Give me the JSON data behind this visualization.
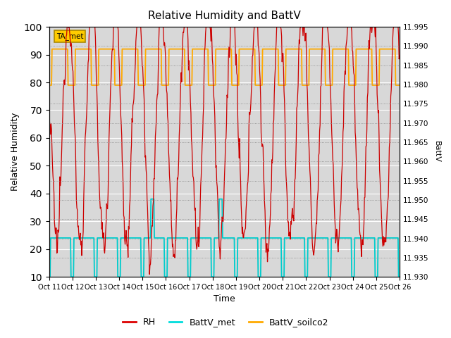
{
  "title": "Relative Humidity and BattV",
  "ylabel_left": "Relative Humidity",
  "ylabel_right": "BattV",
  "xlabel": "Time",
  "ylim_left": [
    10,
    100
  ],
  "ylim_right": [
    11.93,
    11.995
  ],
  "background_color": "#ffffff",
  "plot_bg_color": "#d8d8d8",
  "grid_color": "#ffffff",
  "annotation_text": "TA_met",
  "annotation_color": "#ffcc00",
  "x_tick_labels": [
    "Oct 11",
    "Oct 12",
    "Oct 13",
    "Oct 14",
    "Oct 15",
    "Oct 16",
    "Oct 17",
    "Oct 18",
    "Oct 19",
    "Oct 20",
    "Oct 21",
    "Oct 22",
    "Oct 23",
    "Oct 24",
    "Oct 25",
    "Oct 26"
  ],
  "legend_labels": [
    "RH",
    "BattV_met",
    "BattV_soilco2"
  ],
  "legend_colors": [
    "#dd0000",
    "#00dddd",
    "#ffaa00"
  ],
  "rh_color": "#cc0000",
  "battv_met_color": "#00cccc",
  "battv_soilco2_color": "#ffaa00",
  "yticks_left": [
    10,
    20,
    30,
    40,
    50,
    60,
    70,
    80,
    90,
    100
  ],
  "yticks_right": [
    11.93,
    11.935,
    11.94,
    11.945,
    11.95,
    11.955,
    11.96,
    11.965,
    11.97,
    11.975,
    11.98,
    11.985,
    11.99,
    11.995
  ],
  "batt_soilco2_low": 79,
  "batt_soilco2_high": 92,
  "batt_met_low": 10,
  "batt_met_mid": 24,
  "batt_met_spike": 38
}
